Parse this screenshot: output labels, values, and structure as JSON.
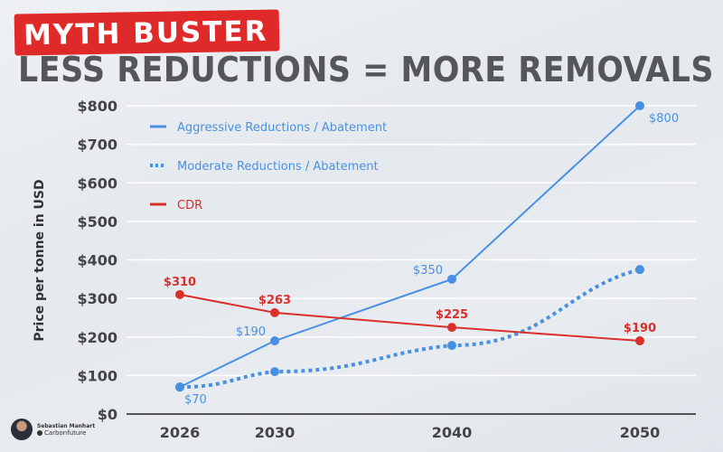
{
  "badge": "MYTH BUSTER",
  "title": "LESS REDUCTIONS = MORE REMOVALS",
  "author": {
    "name": "Sebastian Manhart",
    "org": "Carbonfuture"
  },
  "chart_data": {
    "type": "line",
    "title": "LESS REDUCTIONS = MORE REMOVALS",
    "ylabel": "Price per tonne in USD",
    "xlabel": "",
    "categories": [
      "2026",
      "2030",
      "2040",
      "2050"
    ],
    "ylim": [
      0,
      800
    ],
    "yticks": [
      "$0",
      "$100",
      "$200",
      "$300",
      "$400",
      "$500",
      "$600",
      "$700",
      "$800"
    ],
    "grid": true,
    "legend_position": "top-left",
    "series": [
      {
        "name": "Aggressive Reductions / Abatement",
        "values": [
          70,
          190,
          350,
          800
        ],
        "labels": [
          "$70",
          "$190",
          "$350",
          "$800"
        ],
        "color": "#4a90e2",
        "style": "solid"
      },
      {
        "name": "Moderate Reductions / Abatement",
        "values": [
          70,
          110,
          178,
          375
        ],
        "labels": [
          "",
          "",
          "",
          ""
        ],
        "color": "#4a90e2",
        "style": "dotted"
      },
      {
        "name": "CDR",
        "values": [
          310,
          263,
          225,
          190
        ],
        "labels": [
          "$310",
          "$263",
          "$225",
          "$190"
        ],
        "color": "#d9302c",
        "style": "solid"
      }
    ]
  }
}
